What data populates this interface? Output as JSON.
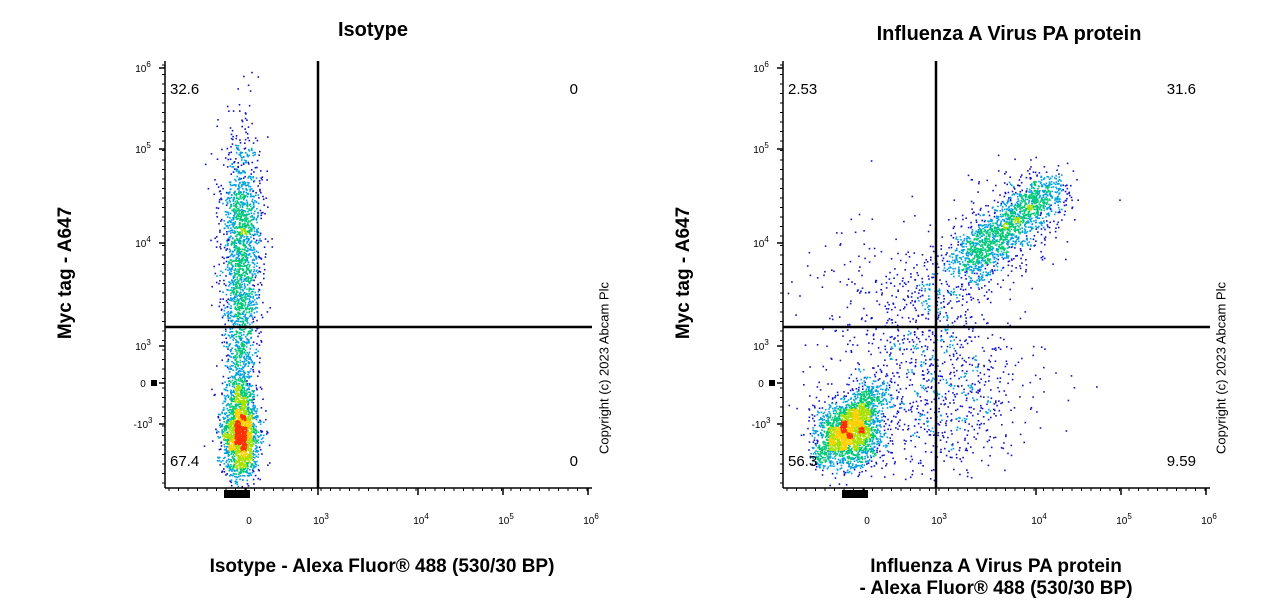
{
  "chart_data": [
    {
      "type": "scatter",
      "title": "Isotype",
      "xlabel": "Isotype - Alexa Fluor® 488 (530/30 BP)",
      "ylabel": "Myc tag - A647",
      "x_scale": "biexponential",
      "y_scale": "biexponential",
      "x_ticks": [
        "0",
        "10^3",
        "10^4",
        "10^5",
        "10^6"
      ],
      "y_ticks": [
        "-10^3",
        "0",
        "10^3",
        "10^4",
        "10^5",
        "10^6"
      ],
      "quadrant_gate": {
        "x": 1000,
        "y": 1500
      },
      "quadrants": {
        "upper_left": "32.6",
        "upper_right": "0",
        "lower_left": "67.4",
        "lower_right": "0"
      },
      "populations": [
        {
          "name": "",
          "x_center": -50,
          "y_center": 15000,
          "fraction": 0.33
        },
        {
          "name": "",
          "x_center": -50,
          "y_center": -1500,
          "fraction": 0.67
        }
      ],
      "copyright": "Copyright (c) 2023 Abcam Plc"
    },
    {
      "type": "scatter",
      "title": "Influenza A Virus PA protein",
      "xlabel": "Influenza A Virus PA protein - Alexa Fluor® 488 (530/30 BP)",
      "xlabel_lines": [
        "Influenza A Virus PA protein",
        "- Alexa Fluor® 488 (530/30 BP)"
      ],
      "ylabel": "Myc tag - A647",
      "x_scale": "biexponential",
      "y_scale": "biexponential",
      "x_ticks": [
        "0",
        "10^3",
        "10^4",
        "10^5",
        "10^6"
      ],
      "y_ticks": [
        "-10^3",
        "0",
        "10^3",
        "10^4",
        "10^5",
        "10^6"
      ],
      "quadrant_gate": {
        "x": 1000,
        "y": 1500
      },
      "quadrants": {
        "upper_left": "2.53",
        "upper_right": "31.6",
        "lower_left": "56.3",
        "lower_right": "9.59"
      },
      "populations": [
        {
          "name": "",
          "x_center": -200,
          "y_center": -1500,
          "fraction": 0.56
        },
        {
          "name": "",
          "x_center": 5000,
          "y_center": 15000,
          "fraction": 0.32
        },
        {
          "name": "",
          "x_center": 3000,
          "y_center": 500,
          "fraction": 0.1
        }
      ],
      "copyright": "Copyright (c) 2023 Abcam Plc"
    }
  ],
  "colors": {
    "density_low": "#0000cc",
    "density_mid": "#00cc88",
    "density_high": "#ffee00",
    "density_peak": "#ff2000"
  }
}
